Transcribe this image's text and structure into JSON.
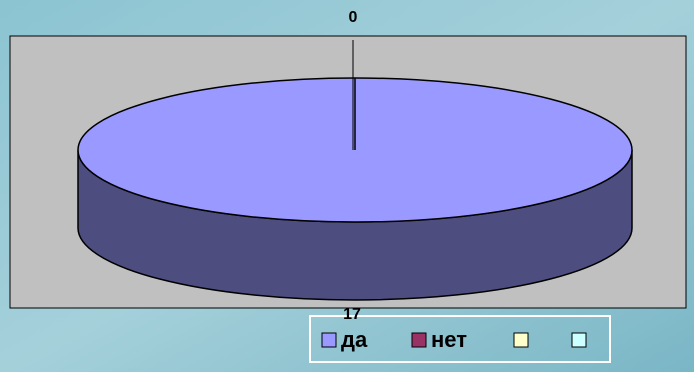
{
  "chart_data": {
    "type": "pie",
    "categories": [
      "да",
      "нет",
      null,
      null
    ],
    "values": [
      17,
      0,
      null,
      null
    ],
    "colors": [
      "#9999ff",
      "#993366",
      "#ffffcc",
      "#ccffff"
    ],
    "legend": "bottom"
  }
}
